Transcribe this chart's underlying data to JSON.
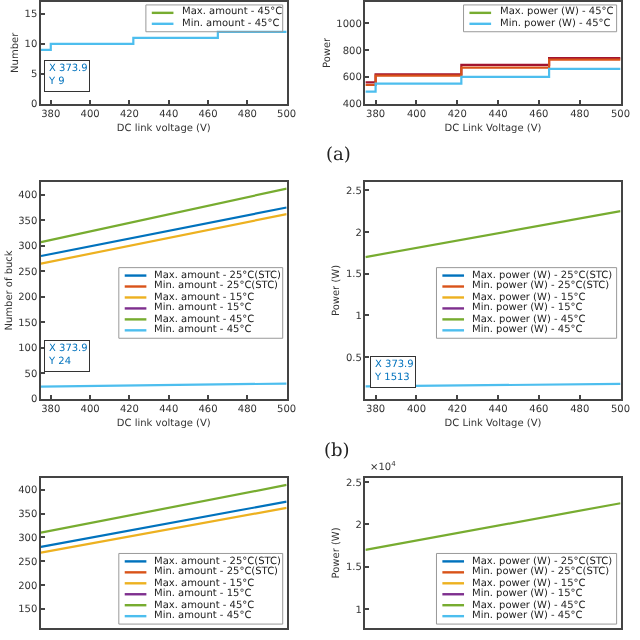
{
  "chart_data": [
    {
      "type": "step",
      "ylabel": "Number",
      "xlabel": "DC link voltage (V)",
      "x": [
        375,
        380,
        422,
        465,
        500
      ],
      "xlim": [
        375,
        500
      ],
      "xticks": [
        380,
        400,
        420,
        440,
        460,
        480,
        500
      ],
      "ylim": [
        0,
        17
      ],
      "yticks": [
        0,
        5,
        10,
        15
      ],
      "legend": "top right",
      "annotations": [
        "X 373.9\nY 9"
      ],
      "series": [
        {
          "name": "Max. amount - 45°C",
          "color": "#77ac30",
          "values": [
            null,
            null,
            null,
            null,
            null
          ]
        },
        {
          "name": "Min. amount - 45°C",
          "color": "#4dbeee",
          "values": [
            9,
            10,
            11,
            12,
            12
          ]
        }
      ]
    },
    {
      "type": "step",
      "ylabel": "Power",
      "xlabel": "DC Link Voltage (V)",
      "x": [
        375,
        380,
        422,
        465,
        500
      ],
      "xlim": [
        375,
        500
      ],
      "xticks": [
        380,
        400,
        420,
        440,
        460,
        480,
        500
      ],
      "ylim": [
        400,
        1160
      ],
      "yticks": [
        400,
        600,
        800,
        1000
      ],
      "legend": "top right",
      "annotations": [
        "(a)"
      ],
      "series": [
        {
          "color": "#a2142f",
          "values": [
            560,
            620,
            690,
            740,
            740
          ]
        },
        {
          "color": "#d95319",
          "values": [
            540,
            610,
            670,
            730,
            730
          ]
        },
        {
          "name": "Max. power (W) - 45°C",
          "color": "#77ac30",
          "values": [
            null,
            null,
            null,
            null,
            null
          ]
        },
        {
          "name": "Min. power (W) - 45°C",
          "color": "#4dbeee",
          "values": [
            490,
            550,
            600,
            660,
            660
          ]
        }
      ]
    },
    {
      "type": "line",
      "ylabel": "Number of buck",
      "xlabel": "DC link voltage (V)",
      "x": [
        375,
        500
      ],
      "xlim": [
        375,
        500
      ],
      "xticks": [
        380,
        400,
        420,
        440,
        460,
        480,
        500
      ],
      "ylim": [
        0,
        425
      ],
      "yticks": [
        0,
        50,
        100,
        150,
        200,
        250,
        300,
        350,
        400
      ],
      "legend": "right",
      "annotations": [
        "X 373.9\nY 24"
      ],
      "series": [
        {
          "name": "Max. amount - 25°C(STC)",
          "color": "#0072bd",
          "values": [
            280,
            375
          ]
        },
        {
          "name": "Min. amount - 25°C(STC)",
          "color": "#d95319",
          "values": [
            null,
            null
          ]
        },
        {
          "name": "Max. amount - 15°C",
          "color": "#edb120",
          "values": [
            265,
            362
          ]
        },
        {
          "name": "Min. amount - 15°C",
          "color": "#7e2f8e",
          "values": [
            null,
            null
          ]
        },
        {
          "name": "Max. amount - 45°C",
          "color": "#77ac30",
          "values": [
            307,
            412
          ]
        },
        {
          "name": "Min. amount - 45°C",
          "color": "#4dbeee",
          "values": [
            24,
            30
          ]
        }
      ]
    },
    {
      "type": "line",
      "ylabel": "Power (W)",
      "xlabel": "DC Link Voltage (V)",
      "x": [
        375,
        500
      ],
      "xlim": [
        375,
        500
      ],
      "xticks": [
        380,
        400,
        420,
        440,
        460,
        480,
        500
      ],
      "ylim": [
        0,
        2.6
      ],
      "yticks": [
        0.5,
        1,
        1.5,
        2,
        2.5
      ],
      "legend": "right",
      "annotations": [
        "X 373.9\nY 1513",
        "(b)"
      ],
      "series": [
        {
          "name": "Max. power (W) - 25°C(STC)",
          "color": "#0072bd",
          "values": [
            null,
            null
          ]
        },
        {
          "name": "Min. power (W) - 25°C(STC)",
          "color": "#d95319",
          "values": [
            null,
            null
          ]
        },
        {
          "name": "Max. power (W) - 15°C",
          "color": "#edb120",
          "values": [
            null,
            null
          ]
        },
        {
          "name": "Min. power (W) - 15°C",
          "color": "#7e2f8e",
          "values": [
            null,
            null
          ]
        },
        {
          "name": "Max. power (W) - 45°C",
          "color": "#77ac30",
          "values": [
            1.7,
            2.25
          ]
        },
        {
          "name": "Min. power (W) - 45°C",
          "color": "#4dbeee",
          "values": [
            0.15,
            0.18
          ]
        }
      ]
    },
    {
      "type": "line",
      "x": [
        375,
        500
      ],
      "xlim": [
        375,
        500
      ],
      "ylim": [
        110,
        425
      ],
      "yticks": [
        150,
        200,
        250,
        300,
        350,
        400
      ],
      "tick_labels": "y",
      "legend": "bottom right",
      "series": [
        {
          "name": "Max. amount - 25°C(STC)",
          "color": "#0072bd",
          "values": [
            280,
            375
          ]
        },
        {
          "name": "Min. amount - 25°C(STC)",
          "color": "#d95319",
          "values": [
            null,
            null
          ]
        },
        {
          "name": "Max. amount - 15°C",
          "color": "#edb120",
          "values": [
            268,
            362
          ]
        },
        {
          "name": "Min. amount - 15°C",
          "color": "#7e2f8e",
          "values": [
            null,
            null
          ]
        },
        {
          "name": "Max. amount - 45°C",
          "color": "#77ac30",
          "values": [
            310,
            410
          ]
        },
        {
          "name": "Min. amount - 45°C",
          "color": "#4dbeee",
          "values": [
            null,
            null
          ]
        }
      ]
    },
    {
      "type": "line",
      "ylabel": "Power (W)",
      "x": [
        375,
        500
      ],
      "xlim": [
        375,
        500
      ],
      "ylim": [
        0.78,
        2.55
      ],
      "yticks": [
        1,
        1.5,
        2,
        2.5
      ],
      "tick_labels": "y",
      "legend": "bottom right",
      "annotations": [
        "×10$^{4}$"
      ],
      "series": [
        {
          "name": "Max. power (W) - 25°C(STC)",
          "color": "#0072bd",
          "values": [
            null,
            null
          ]
        },
        {
          "name": "Min. power (W) - 25°C(STC)",
          "color": "#d95319",
          "values": [
            null,
            null
          ]
        },
        {
          "name": "Max. power (W) - 15°C",
          "color": "#edb120",
          "values": [
            null,
            null
          ]
        },
        {
          "name": "Min. power (W) - 15°C",
          "color": "#7e2f8e",
          "values": [
            null,
            null
          ]
        },
        {
          "name": "Max. power (W) - 45°C",
          "color": "#77ac30",
          "values": [
            1.7,
            2.25
          ]
        },
        {
          "name": "Min. power (W) - 45°C",
          "color": "#4dbeee",
          "values": [
            null,
            null
          ]
        }
      ]
    }
  ]
}
